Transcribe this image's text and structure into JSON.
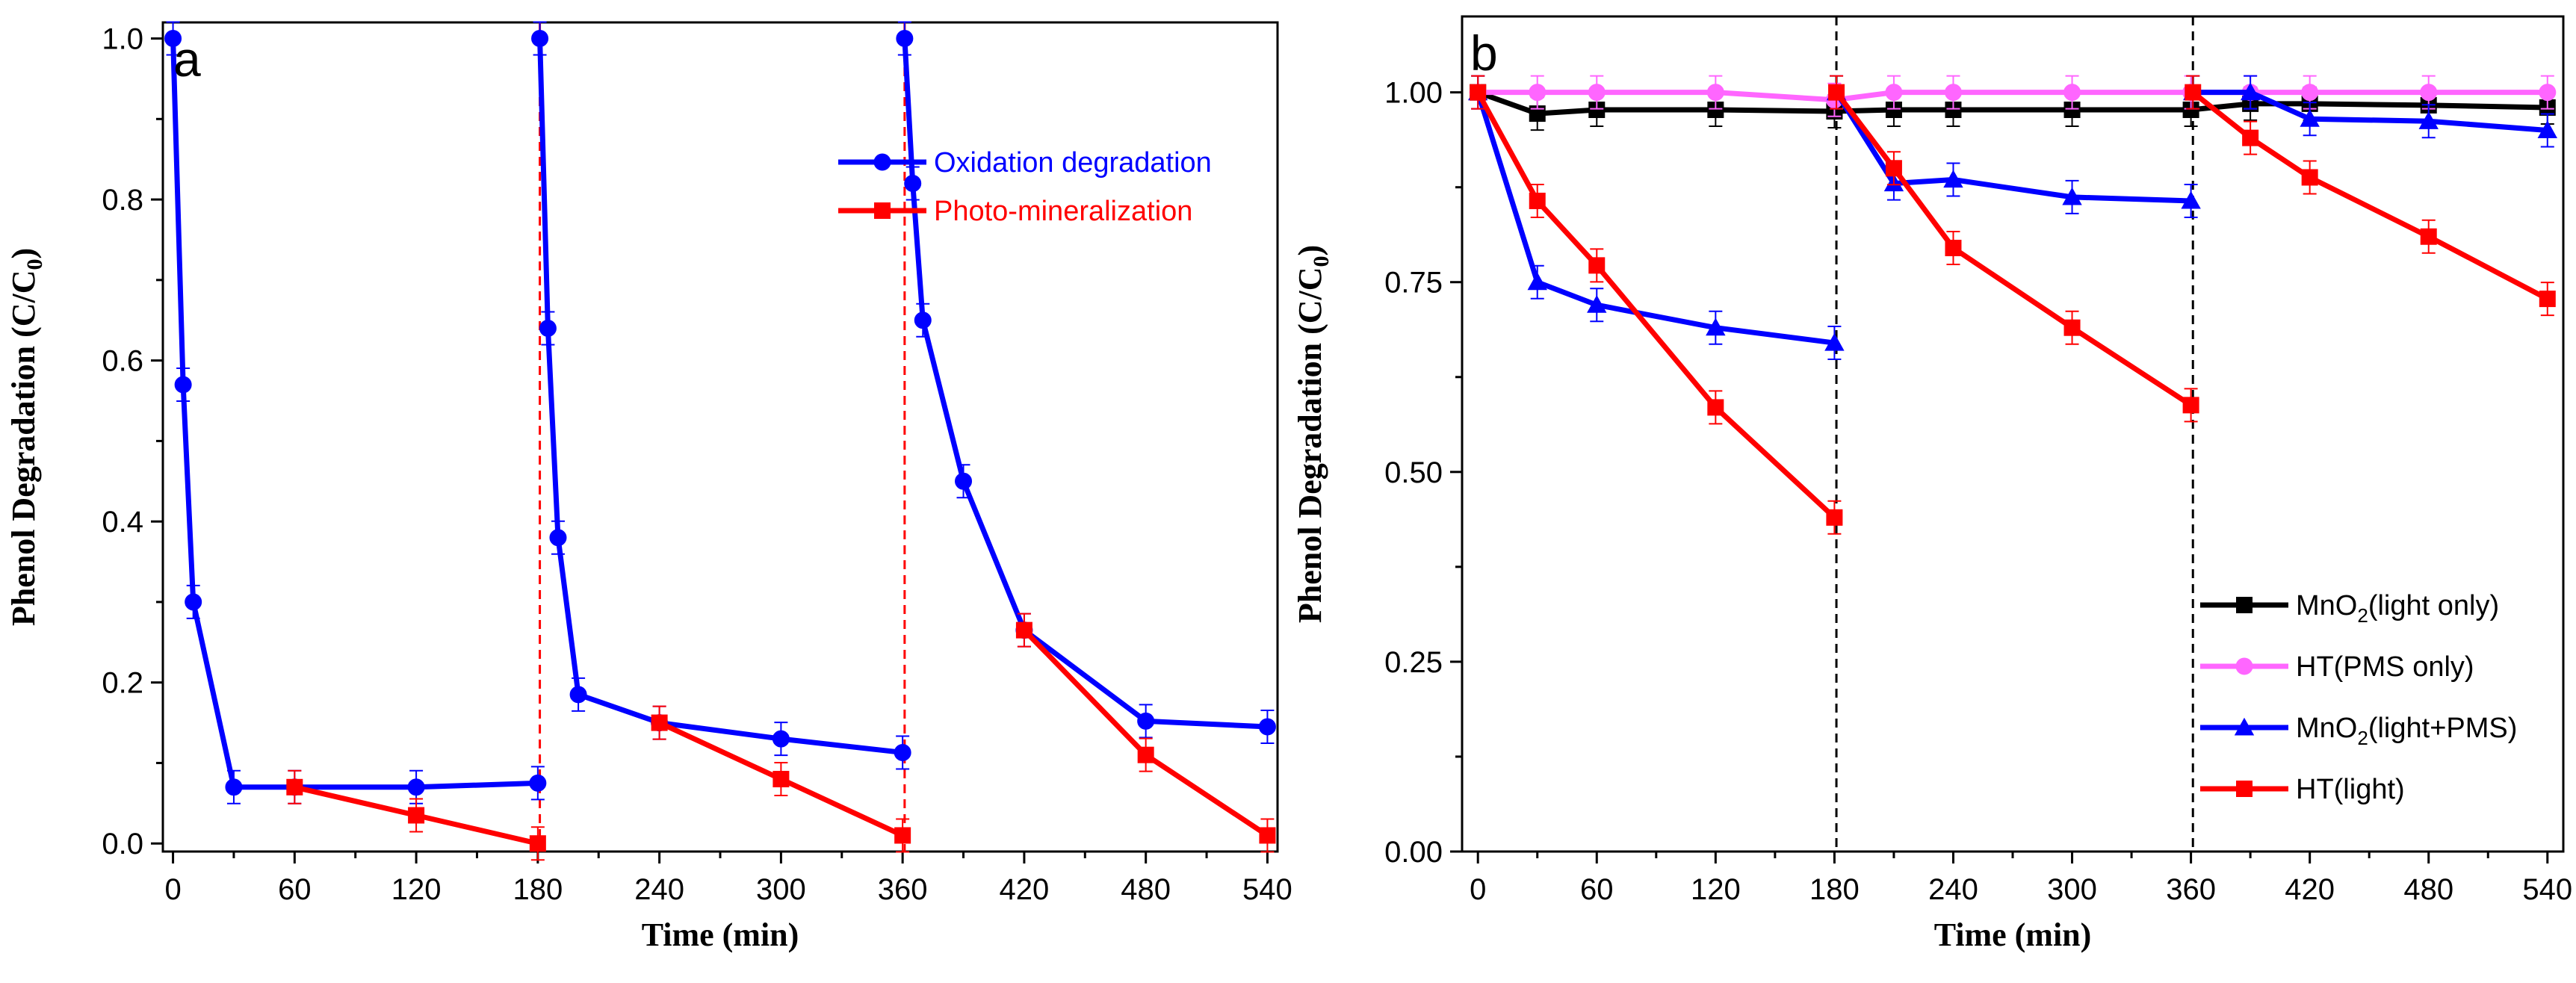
{
  "chart_data": [
    {
      "panel": "a",
      "type": "line",
      "xlabel": "Time (min)",
      "ylabel_main": "Phenol Degradation (C/C",
      "ylabel_sub": "0",
      "ylabel_close": ")",
      "xlim": [
        -5,
        545
      ],
      "ylim": [
        -0.01,
        1.02
      ],
      "xticks": [
        0,
        60,
        120,
        180,
        240,
        300,
        360,
        420,
        480,
        540
      ],
      "yticks": [
        0.0,
        0.2,
        0.4,
        0.6,
        0.8,
        1.0
      ],
      "ytick_labels": [
        "0.0",
        "0.2",
        "0.4",
        "0.6",
        "0.8",
        "1.0"
      ],
      "vlines": [
        181,
        361
      ],
      "vline_color": "#ff0000",
      "legend_position": "top-right",
      "series": [
        {
          "name": "Oxidation degradation",
          "color": "#0000ff",
          "marker": "circle",
          "segments": [
            [
              [
                0,
                1.0
              ],
              [
                5,
                0.57
              ],
              [
                10,
                0.3
              ],
              [
                30,
                0.07
              ],
              [
                60,
                0.07
              ],
              [
                120,
                0.07
              ],
              [
                180,
                0.075
              ]
            ],
            [
              [
                181,
                1.0
              ],
              [
                185,
                0.64
              ],
              [
                190,
                0.38
              ],
              [
                200,
                0.185
              ],
              [
                240,
                0.15
              ],
              [
                300,
                0.13
              ],
              [
                360,
                0.113
              ]
            ],
            [
              [
                361,
                1.0
              ],
              [
                365,
                0.82
              ],
              [
                370,
                0.65
              ],
              [
                390,
                0.45
              ],
              [
                420,
                0.265
              ],
              [
                480,
                0.152
              ],
              [
                540,
                0.145
              ]
            ]
          ]
        },
        {
          "name": "Photo-mineralization",
          "color": "#ff0000",
          "marker": "square",
          "segments": [
            [
              [
                60,
                0.07
              ],
              [
                120,
                0.035
              ],
              [
                180,
                0.0
              ]
            ],
            [
              [
                240,
                0.15
              ],
              [
                300,
                0.08
              ],
              [
                360,
                0.01
              ]
            ],
            [
              [
                420,
                0.265
              ],
              [
                480,
                0.11
              ],
              [
                540,
                0.01
              ]
            ]
          ]
        }
      ]
    },
    {
      "panel": "b",
      "type": "line",
      "xlabel": "Time (min)",
      "ylabel_main": "Phenol Degradation (C/C",
      "ylabel_sub": "0",
      "ylabel_close": ")",
      "xlim": [
        -8,
        548
      ],
      "ylim": [
        0.0,
        1.1
      ],
      "xticks": [
        0,
        60,
        120,
        180,
        240,
        300,
        360,
        420,
        480,
        540
      ],
      "yticks": [
        0.0,
        0.25,
        0.5,
        0.75,
        1.0
      ],
      "ytick_labels": [
        "0.00",
        "0.25",
        "0.50",
        "0.75",
        "1.00"
      ],
      "vlines": [
        181,
        361
      ],
      "vline_color": "#000000",
      "legend_position": "bottom-right",
      "series": [
        {
          "name": "MnO2(light only)",
          "legend_parts": [
            "MnO",
            "2",
            "(light only)"
          ],
          "color": "#000000",
          "marker": "square",
          "segments": [
            [
              [
                0,
                1.0
              ],
              [
                30,
                0.972
              ],
              [
                60,
                0.977
              ],
              [
                120,
                0.977
              ],
              [
                180,
                0.975
              ],
              [
                210,
                0.977
              ],
              [
                240,
                0.977
              ],
              [
                300,
                0.977
              ],
              [
                360,
                0.977
              ],
              [
                390,
                0.985
              ],
              [
                420,
                0.985
              ],
              [
                480,
                0.983
              ],
              [
                540,
                0.98
              ]
            ]
          ]
        },
        {
          "name": "HT(PMS only)",
          "legend_parts": [
            "HT(PMS only)",
            "",
            ""
          ],
          "color": "#ff66ff",
          "marker": "circle",
          "segments": [
            [
              [
                0,
                1.0
              ],
              [
                30,
                1.0
              ],
              [
                60,
                1.0
              ],
              [
                120,
                1.0
              ],
              [
                180,
                0.99
              ],
              [
                210,
                1.0
              ],
              [
                240,
                1.0
              ],
              [
                300,
                1.0
              ],
              [
                360,
                1.0
              ],
              [
                390,
                1.0
              ],
              [
                420,
                1.0
              ],
              [
                480,
                1.0
              ],
              [
                540,
                1.0
              ]
            ]
          ]
        },
        {
          "name": "MnO2(light+PMS)",
          "legend_parts": [
            "MnO",
            "2",
            "(light+PMS)"
          ],
          "color": "#0000ff",
          "marker": "triangle",
          "segments": [
            [
              [
                0,
                1.0
              ],
              [
                30,
                0.75
              ],
              [
                60,
                0.72
              ],
              [
                120,
                0.69
              ],
              [
                180,
                0.67
              ]
            ],
            [
              [
                181,
                1.0
              ],
              [
                210,
                0.88
              ],
              [
                240,
                0.885
              ],
              [
                300,
                0.862
              ],
              [
                360,
                0.857
              ]
            ],
            [
              [
                361,
                1.0
              ],
              [
                390,
                1.0
              ],
              [
                420,
                0.965
              ],
              [
                480,
                0.962
              ],
              [
                540,
                0.95
              ]
            ]
          ]
        },
        {
          "name": "HT(light)",
          "legend_parts": [
            "HT(light)",
            "",
            ""
          ],
          "color": "#ff0000",
          "marker": "square",
          "segments": [
            [
              [
                0,
                1.0
              ],
              [
                30,
                0.857
              ],
              [
                60,
                0.772
              ],
              [
                120,
                0.585
              ],
              [
                180,
                0.44
              ]
            ],
            [
              [
                181,
                1.0
              ],
              [
                210,
                0.9
              ],
              [
                240,
                0.795
              ],
              [
                300,
                0.69
              ],
              [
                360,
                0.588
              ]
            ],
            [
              [
                361,
                1.0
              ],
              [
                390,
                0.94
              ],
              [
                420,
                0.888
              ],
              [
                480,
                0.81
              ],
              [
                540,
                0.728
              ]
            ]
          ]
        }
      ]
    }
  ]
}
